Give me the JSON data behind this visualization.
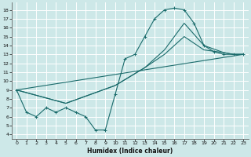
{
  "xlabel": "Humidex (Indice chaleur)",
  "bg_color": "#cde8e8",
  "grid_color": "#ffffff",
  "line_color": "#1a6b6b",
  "xlim": [
    -0.5,
    23.5
  ],
  "ylim": [
    3.5,
    18.8
  ],
  "xticks": [
    0,
    1,
    2,
    3,
    4,
    5,
    6,
    7,
    8,
    9,
    10,
    11,
    12,
    13,
    14,
    15,
    16,
    17,
    18,
    19,
    20,
    21,
    22,
    23
  ],
  "yticks": [
    4,
    5,
    6,
    7,
    8,
    9,
    10,
    11,
    12,
    13,
    14,
    15,
    16,
    17,
    18
  ],
  "line_wavy": {
    "x": [
      0,
      1,
      2,
      3,
      4,
      5,
      6,
      7,
      8,
      9,
      10,
      11,
      12,
      13,
      14,
      15,
      16,
      17,
      18,
      19,
      20,
      21,
      22,
      23
    ],
    "y": [
      9,
      6.5,
      6,
      7,
      6.5,
      7,
      6.5,
      6,
      4.5,
      4.5,
      8.5,
      12.5,
      13,
      15,
      17,
      18,
      18.2,
      18,
      16.5,
      14,
      13.3,
      13,
      13,
      13
    ]
  },
  "line_straight1": {
    "x": [
      0,
      23
    ],
    "y": [
      9,
      13
    ]
  },
  "line_straight2": {
    "x": [
      0,
      5,
      10,
      13,
      15,
      17,
      19,
      21,
      22,
      23
    ],
    "y": [
      9,
      7.5,
      9.5,
      11.5,
      13.5,
      16.5,
      14,
      13.2,
      13,
      13
    ]
  },
  "line_straight3": {
    "x": [
      0,
      5,
      10,
      13,
      15,
      17,
      19,
      21,
      22,
      23
    ],
    "y": [
      9,
      7.5,
      9.5,
      11.5,
      13,
      15,
      13.5,
      13.2,
      13,
      13
    ]
  }
}
